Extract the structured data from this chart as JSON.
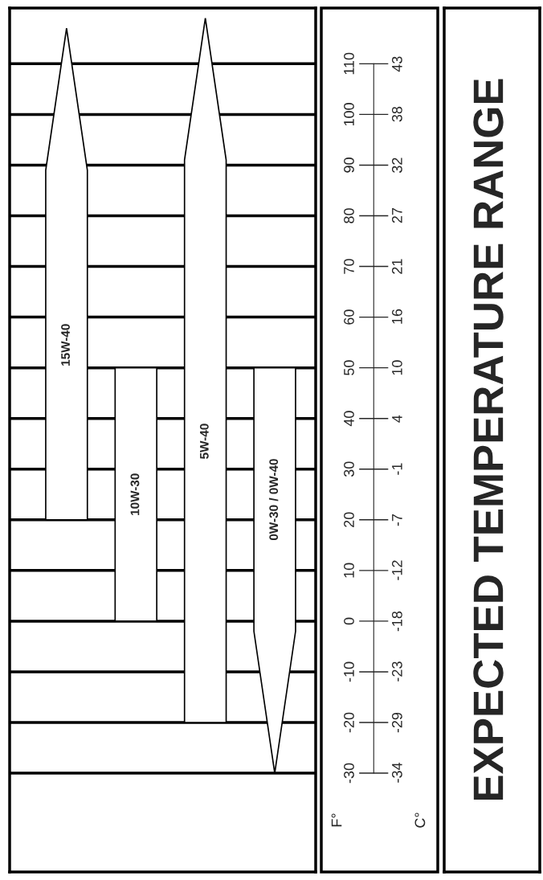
{
  "chart_data": {
    "type": "bar",
    "title": "EXPECTED TEMPERATURE RANGE",
    "categories": [
      "15W-40",
      "10W-30",
      "5W-40",
      "0W-30 / 0W-40"
    ],
    "series": [
      {
        "color": "#ffffff",
        "values": [
          97,
          50,
          139,
          80
        ],
        "base": [
          20,
          0,
          -20,
          -30
        ]
      }
    ],
    "ylim": [
      -49.5,
      121
    ],
    "yticks": [
      -30,
      -20,
      -10,
      0,
      10,
      20,
      30,
      40,
      50,
      60,
      70,
      80,
      90,
      100,
      110
    ],
    "y2lim": [
      -45.28,
      49.44
    ],
    "y2ticks": [
      {
        "value": -34.4,
        "label": "-34"
      },
      {
        "value": -28.9,
        "label": "-29"
      },
      {
        "value": -23.3,
        "label": "-23"
      },
      {
        "value": -17.8,
        "label": "-18"
      },
      {
        "value": -12.2,
        "label": "-12"
      },
      {
        "value": -6.7,
        "label": "-7"
      },
      {
        "value": -1.1,
        "label": "-1"
      },
      {
        "value": 4.4,
        "label": "4"
      },
      {
        "value": 10,
        "label": "10"
      },
      {
        "value": 15.6,
        "label": "16"
      },
      {
        "value": 21.1,
        "label": "21"
      },
      {
        "value": 26.7,
        "label": "27"
      },
      {
        "value": 32.2,
        "label": "32"
      },
      {
        "value": 37.8,
        "label": "38"
      },
      {
        "value": 43.3,
        "label": "43"
      }
    ],
    "ylabel": "F°",
    "y2label": "C°",
    "grid": "y"
  }
}
